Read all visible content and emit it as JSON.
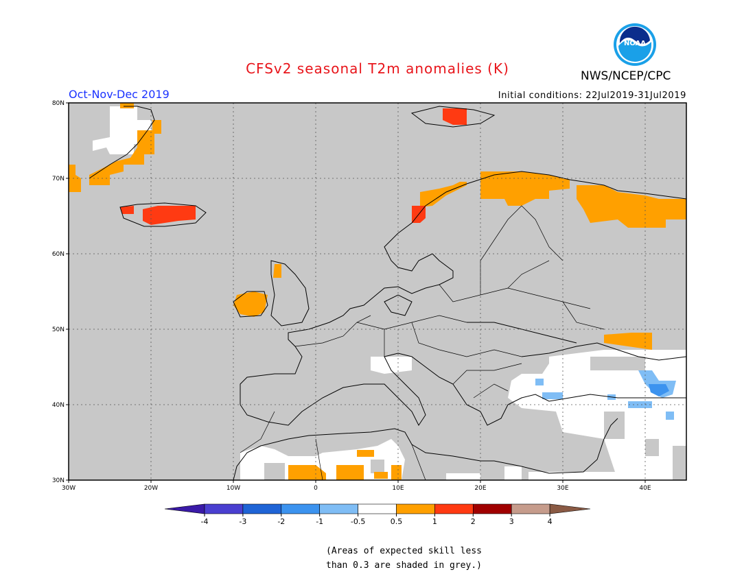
{
  "header": {
    "title": "CFSv2 seasonal T2m anomalies (K)",
    "agency": "NWS/NCEP/CPC",
    "season": "Oct-Nov-Dec 2019",
    "initial_conditions": "Initial conditions: 22Jul2019-31Jul2019",
    "logo_text": "NOAA"
  },
  "map": {
    "lon_range": [
      -30,
      45
    ],
    "lat_range": [
      30,
      80
    ],
    "lon_ticks": [
      {
        "v": -30,
        "label": "30W"
      },
      {
        "v": -20,
        "label": "20W"
      },
      {
        "v": -10,
        "label": "10W"
      },
      {
        "v": 0,
        "label": "0"
      },
      {
        "v": 10,
        "label": "10E"
      },
      {
        "v": 20,
        "label": "20E"
      },
      {
        "v": 30,
        "label": "30E"
      },
      {
        "v": 40,
        "label": "40E"
      }
    ],
    "lat_ticks": [
      {
        "v": 80,
        "label": "80N"
      },
      {
        "v": 70,
        "label": "70N"
      },
      {
        "v": 60,
        "label": "60N"
      },
      {
        "v": 50,
        "label": "50N"
      },
      {
        "v": 40,
        "label": "40N"
      },
      {
        "v": 30,
        "label": "30N"
      }
    ],
    "grid": true,
    "background_color": "#c8c8c8"
  },
  "colorbar": {
    "boundaries": [
      "-4",
      "-3",
      "-2",
      "-1",
      "-0.5",
      "0.5",
      "1",
      "2",
      "3",
      "4"
    ],
    "colors": [
      "#3a1aa8",
      "#4a3fd0",
      "#1f64d6",
      "#3c93ef",
      "#7fbdf5",
      "#ffffff",
      "#ffa000",
      "#ff3a12",
      "#a00000",
      "#c69c8c",
      "#8a5a44"
    ]
  },
  "note": {
    "line1": "(Areas of expected skill less",
    "line2": "than 0.3 are shaded in grey.)"
  }
}
